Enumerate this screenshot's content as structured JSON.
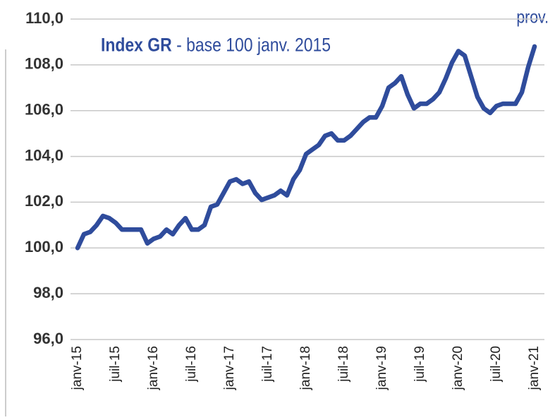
{
  "chart_data": {
    "type": "line",
    "title_bold": "Index GR",
    "title_rest": "- base 100 janv. 2015",
    "annotation": "prov.",
    "categories": [
      "janv-15",
      null,
      null,
      null,
      null,
      null,
      "juil-15",
      null,
      null,
      null,
      null,
      null,
      "janv-16",
      null,
      null,
      null,
      null,
      null,
      "juil-16",
      null,
      null,
      null,
      null,
      null,
      "janv-17",
      null,
      null,
      null,
      null,
      null,
      "juil-17",
      null,
      null,
      null,
      null,
      null,
      "janv-18",
      null,
      null,
      null,
      null,
      null,
      "juil-18",
      null,
      null,
      null,
      null,
      null,
      "janv-19",
      null,
      null,
      null,
      null,
      null,
      "juil-19",
      null,
      null,
      null,
      null,
      null,
      "janv-20",
      null,
      null,
      null,
      null,
      null,
      "juil-20",
      null,
      null,
      null,
      null,
      null,
      "janv-21"
    ],
    "values": [
      100.0,
      100.6,
      100.7,
      101.0,
      101.4,
      101.3,
      101.1,
      100.8,
      100.8,
      100.8,
      100.8,
      100.2,
      100.4,
      100.5,
      100.8,
      100.6,
      101.0,
      101.3,
      100.8,
      100.8,
      101.0,
      101.8,
      101.9,
      102.4,
      102.9,
      103.0,
      102.8,
      102.9,
      102.4,
      102.1,
      102.2,
      102.3,
      102.5,
      102.3,
      103.0,
      103.4,
      104.1,
      104.3,
      104.5,
      104.9,
      105.0,
      104.7,
      104.7,
      104.9,
      105.2,
      105.5,
      105.7,
      105.7,
      106.2,
      107.0,
      107.2,
      107.5,
      106.7,
      106.1,
      106.3,
      106.3,
      106.5,
      106.8,
      107.4,
      108.1,
      108.6,
      108.4,
      107.5,
      106.6,
      106.1,
      105.9,
      106.2,
      106.3,
      106.3,
      106.3,
      106.8,
      107.9,
      108.8
    ],
    "color": "#2f4c9c",
    "ylim": [
      96,
      110
    ],
    "yticks": [
      {
        "value": 96,
        "label": "96,0"
      },
      {
        "value": 98,
        "label": "98,0"
      },
      {
        "value": 100,
        "label": "100,0"
      },
      {
        "value": 102,
        "label": "102,0"
      },
      {
        "value": 104,
        "label": "104,0"
      },
      {
        "value": 106,
        "label": "106,0"
      },
      {
        "value": 108,
        "label": "108,0"
      },
      {
        "value": 110,
        "label": "110,0"
      }
    ],
    "grid": true
  }
}
